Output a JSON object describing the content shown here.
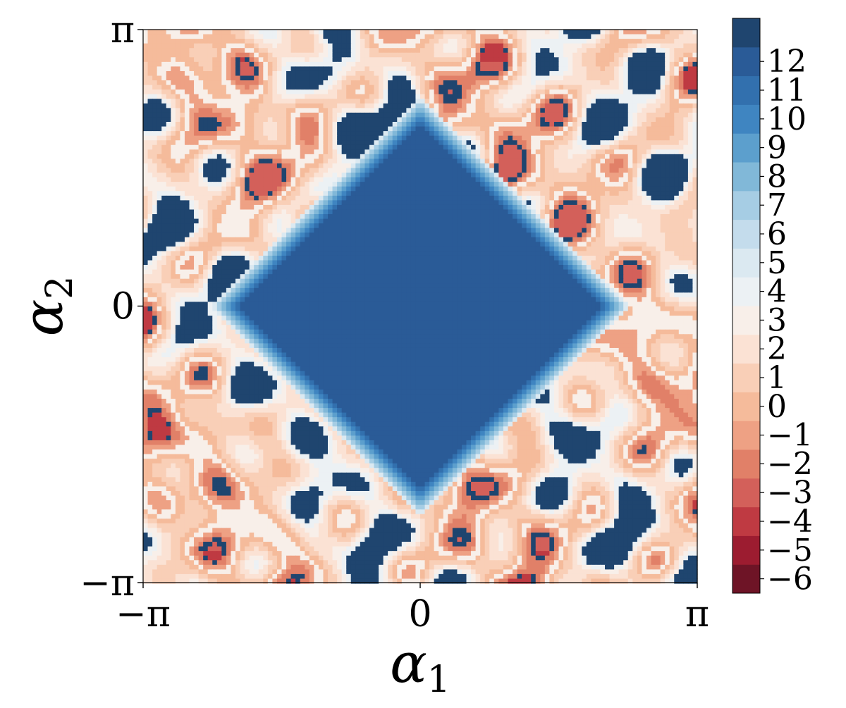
{
  "chart_data": {
    "type": "heatmap",
    "xlabel": "α",
    "xlabel_sub": "1",
    "ylabel": "α",
    "ylabel_sub": "2",
    "xlim": [
      -3.14159,
      3.14159
    ],
    "ylim": [
      -3.14159,
      3.14159
    ],
    "x_ticks": [
      {
        "value": -3.14159,
        "label": "−π"
      },
      {
        "value": 0,
        "label": "0"
      },
      {
        "value": 3.14159,
        "label": "π"
      }
    ],
    "y_ticks": [
      {
        "value": -3.14159,
        "label": "−π"
      },
      {
        "value": 0,
        "label": "0"
      },
      {
        "value": 3.14159,
        "label": "π"
      }
    ],
    "colorbar": {
      "min": -6,
      "max": 13,
      "levels": [
        -6,
        -5,
        -4,
        -3,
        -2,
        -1,
        0,
        1,
        2,
        3,
        4,
        5,
        6,
        7,
        8,
        9,
        10,
        11,
        12,
        13
      ],
      "tick_values": [
        -6,
        -5,
        -4,
        -3,
        -2,
        -1,
        0,
        1,
        2,
        3,
        4,
        5,
        6,
        7,
        8,
        9,
        10,
        11,
        12
      ],
      "tick_labels": [
        "−6",
        "−5",
        "−4",
        "−3",
        "−2",
        "−1",
        "0",
        "1",
        "2",
        "3",
        "4",
        "5",
        "6",
        "7",
        "8",
        "9",
        "10",
        "11",
        "12"
      ],
      "colors": [
        "#6e1426",
        "#9c1c30",
        "#bf3a42",
        "#d3605a",
        "#e18068",
        "#eea184",
        "#f5bb9b",
        "#f9cfb7",
        "#fbe2d4",
        "#f8efe9",
        "#ecf1f4",
        "#dbe9f1",
        "#c4dcec",
        "#a6cde4",
        "#81b8d8",
        "#5c9fcd",
        "#3f85c1",
        "#3270ae",
        "#2a5b97",
        "#1f456f"
      ],
      "colormap": "RdBu (discrete)"
    },
    "structure": {
      "central_region": {
        "shape": "diamond",
        "value": 12,
        "center": [
          0,
          0
        ],
        "half_diagonal_x": 2.4,
        "half_diagonal_y": 2.4
      },
      "boundary_layer_values": [
        5,
        6,
        7,
        8,
        9,
        10,
        11
      ],
      "surrounding_values": "mixture of -6 to 4 and 13",
      "grid": false
    }
  }
}
